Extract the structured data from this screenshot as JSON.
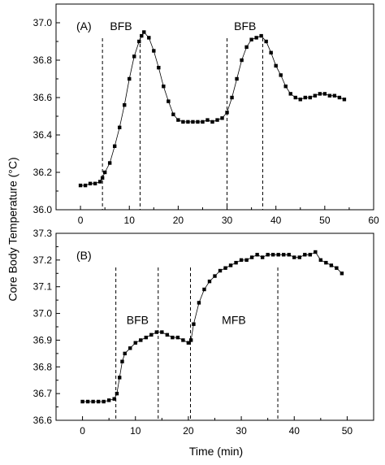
{
  "figure": {
    "shared_xlabel": "Time (min)",
    "shared_ylabel": "Core Body Temperature (°C)"
  },
  "chart_data": [
    {
      "type": "scatter",
      "panel_label": "(A)",
      "xlim": [
        -5,
        60
      ],
      "ylim": [
        36.0,
        37.1
      ],
      "xticks": [
        0,
        10,
        20,
        30,
        40,
        50,
        60
      ],
      "yticks": [
        36.0,
        36.2,
        36.4,
        36.6,
        36.8,
        37.0
      ],
      "ytick_labels": [
        "36.0",
        "36.2",
        "36.4",
        "36.6",
        "36.8",
        "37.0"
      ],
      "vlines": [
        4.5,
        12.2,
        30.0,
        37.3
      ],
      "annotations": [
        {
          "text": "BFB",
          "x": 8.3,
          "y": 36.96
        },
        {
          "text": "BFB",
          "x": 33.7,
          "y": 36.96
        }
      ],
      "series": [
        {
          "x": [
            0,
            1,
            2,
            3,
            4,
            4.5,
            5,
            6,
            7,
            8,
            9,
            10,
            11,
            12,
            12.5,
            13,
            14,
            15,
            16,
            17,
            18,
            19,
            20,
            21,
            22,
            23,
            24,
            25,
            26,
            27,
            28,
            29,
            30,
            31,
            32,
            33,
            34,
            35,
            36,
            37,
            38,
            39,
            40,
            41,
            42,
            43,
            44,
            45,
            46,
            47,
            48,
            49,
            50,
            51,
            52,
            53,
            54
          ],
          "y": [
            36.13,
            36.13,
            36.14,
            36.14,
            36.15,
            36.17,
            36.2,
            36.25,
            36.34,
            36.44,
            36.56,
            36.7,
            36.82,
            36.9,
            36.93,
            36.95,
            36.92,
            36.85,
            36.76,
            36.66,
            36.58,
            36.51,
            36.48,
            36.47,
            36.47,
            36.47,
            36.47,
            36.47,
            36.48,
            36.47,
            36.48,
            36.49,
            36.52,
            36.6,
            36.7,
            36.8,
            36.87,
            36.91,
            36.92,
            36.93,
            36.9,
            36.84,
            36.77,
            36.72,
            36.66,
            36.62,
            36.6,
            36.59,
            36.6,
            36.6,
            36.61,
            36.62,
            36.62,
            36.61,
            36.61,
            36.6,
            36.59
          ]
        }
      ]
    },
    {
      "type": "scatter",
      "panel_label": "(B)",
      "xlim": [
        -5,
        55
      ],
      "ylim": [
        36.6,
        37.3
      ],
      "xticks": [
        0,
        10,
        20,
        30,
        40,
        50
      ],
      "yticks": [
        36.6,
        36.7,
        36.8,
        36.9,
        37.0,
        37.1,
        37.2,
        37.3
      ],
      "ytick_labels": [
        "36.6",
        "36.7",
        "36.8",
        "36.9",
        "37.0",
        "37.1",
        "37.2",
        "37.3"
      ],
      "vlines": [
        6.3,
        14.3,
        20.4,
        36.9
      ],
      "annotations": [
        {
          "text": "BFB",
          "x": 10.4,
          "y": 36.96
        },
        {
          "text": "MFB",
          "x": 28.6,
          "y": 36.96
        }
      ],
      "series": [
        {
          "x": [
            0,
            1,
            2,
            3,
            4,
            5,
            6,
            6.5,
            7,
            7.5,
            8,
            9,
            10,
            11,
            12,
            13,
            14,
            15,
            16,
            17,
            18,
            19,
            20,
            20.5,
            21,
            22,
            23,
            24,
            25,
            26,
            27,
            28,
            29,
            30,
            31,
            32,
            33,
            34,
            35,
            36,
            37,
            38,
            39,
            40,
            41,
            42,
            43,
            44,
            45,
            46,
            47,
            48,
            49
          ],
          "y": [
            36.67,
            36.67,
            36.67,
            36.67,
            36.67,
            36.675,
            36.68,
            36.7,
            36.76,
            36.82,
            36.85,
            36.87,
            36.89,
            36.9,
            36.91,
            36.92,
            36.93,
            36.93,
            36.92,
            36.91,
            36.91,
            36.9,
            36.89,
            36.9,
            36.96,
            37.04,
            37.09,
            37.12,
            37.14,
            37.16,
            37.17,
            37.18,
            37.19,
            37.2,
            37.2,
            37.21,
            37.22,
            37.21,
            37.22,
            37.22,
            37.22,
            37.22,
            37.22,
            37.21,
            37.21,
            37.22,
            37.22,
            37.23,
            37.2,
            37.19,
            37.18,
            37.17,
            37.15
          ]
        }
      ]
    }
  ]
}
